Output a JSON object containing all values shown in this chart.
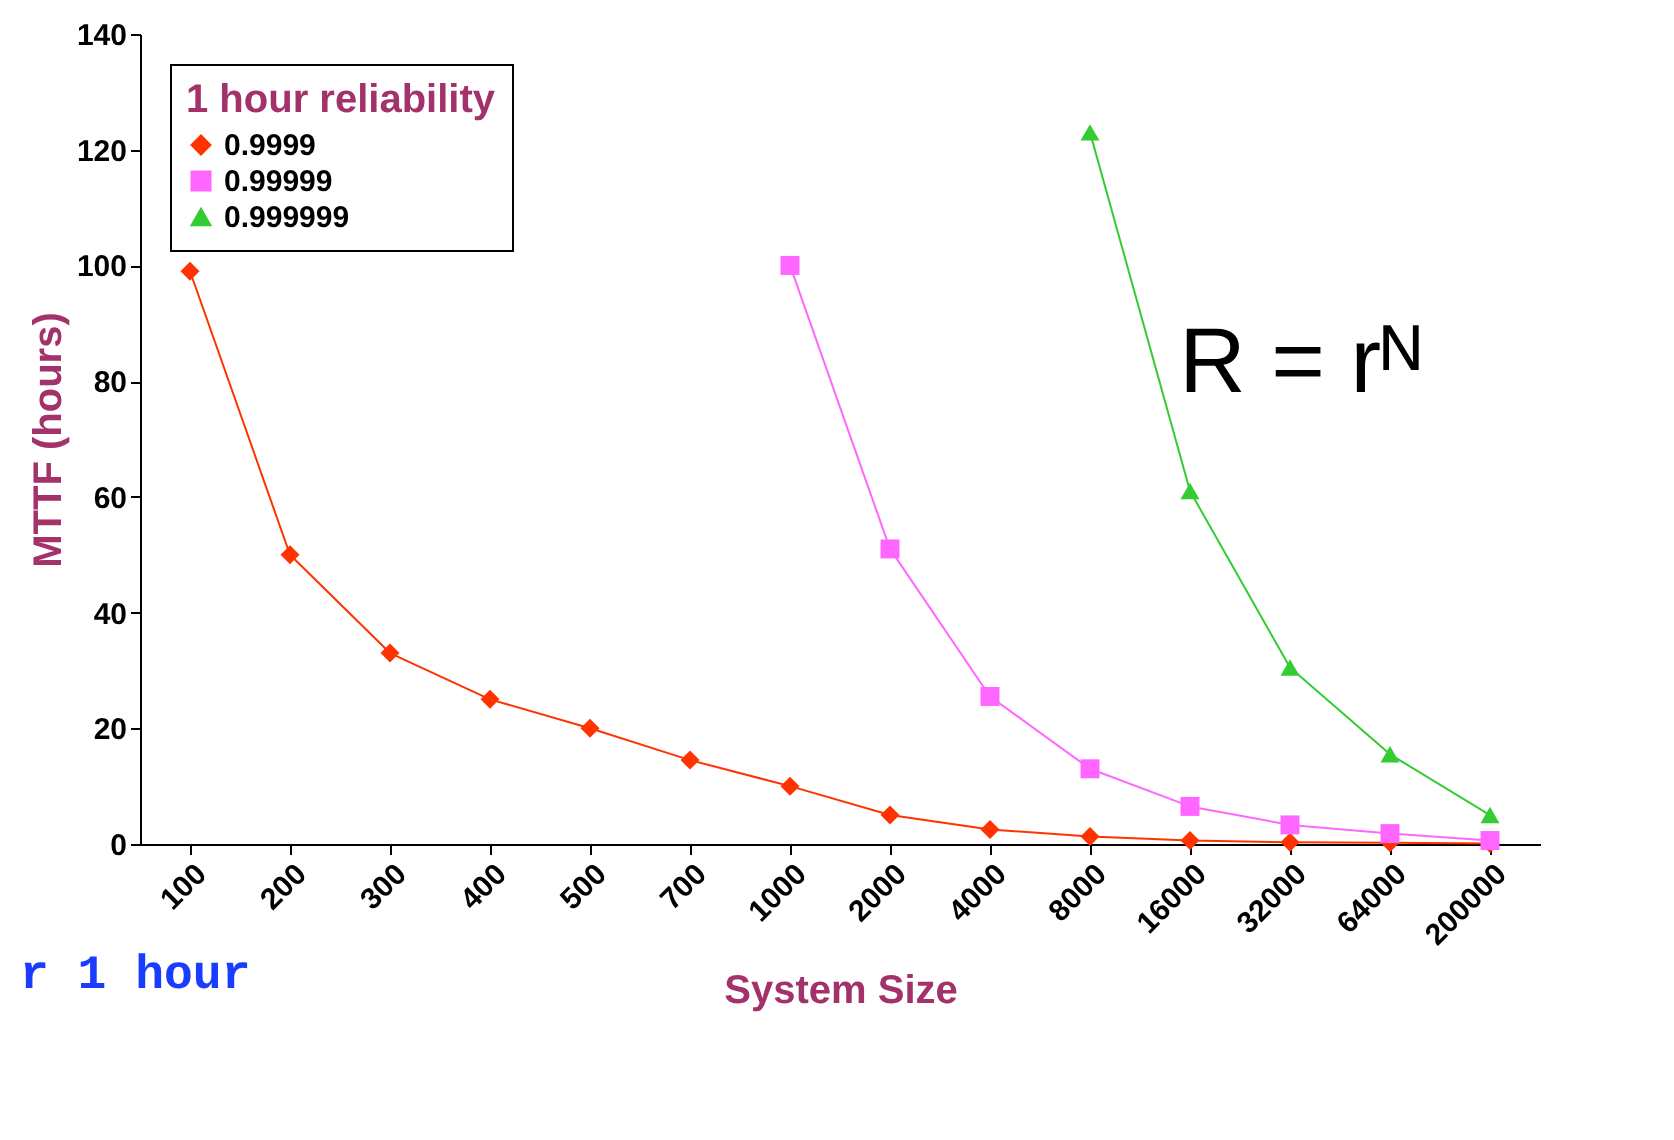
{
  "chart_data": {
    "type": "line",
    "xlabel": "System Size",
    "ylabel": "MTTF (hours)",
    "legend_title": "1 hour reliability",
    "categories": [
      "100",
      "200",
      "300",
      "400",
      "500",
      "700",
      "1000",
      "2000",
      "4000",
      "8000",
      "16000",
      "32000",
      "64000",
      "200000"
    ],
    "series": [
      {
        "name": "0.9999",
        "color": "#ff3300",
        "marker": "diamond",
        "values": [
          99,
          50,
          33,
          25,
          20,
          14.5,
          10,
          5,
          2.5,
          1.3,
          0.6,
          0.3,
          0.2,
          0.1
        ]
      },
      {
        "name": "0.99999",
        "color": "#ff66ff",
        "marker": "square",
        "values": [
          null,
          null,
          null,
          null,
          null,
          null,
          100,
          51,
          25.5,
          13,
          6.5,
          3.3,
          1.8,
          0.6
        ]
      },
      {
        "name": "0.999999",
        "color": "#33cc33",
        "marker": "triangle",
        "values": [
          null,
          null,
          null,
          null,
          null,
          null,
          null,
          null,
          null,
          123,
          61,
          30.5,
          15.5,
          5
        ]
      }
    ],
    "ylim": [
      0,
      140
    ],
    "yticks": [
      0,
      20,
      40,
      60,
      80,
      100,
      120,
      140
    ],
    "grid": false,
    "legend": "top left",
    "annotations": [
      "R = rᴺ",
      "r 1 hour"
    ]
  }
}
